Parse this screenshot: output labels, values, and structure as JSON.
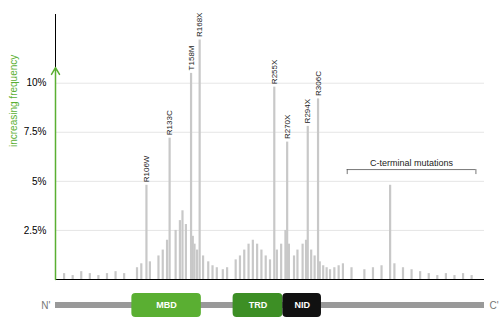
{
  "chart_data": {
    "type": "bar",
    "ylabel": "increasing frequency",
    "x": [
      10,
      20,
      30,
      40,
      50,
      60,
      70,
      80,
      95,
      100,
      110,
      120,
      125,
      130,
      140,
      145,
      148,
      152,
      160,
      162,
      165,
      172,
      178,
      183,
      188,
      195,
      200,
      210,
      215,
      220,
      225,
      230,
      235,
      240,
      245,
      250,
      258,
      263,
      268,
      272,
      278,
      282,
      288,
      292,
      298,
      302,
      308,
      312,
      316,
      320,
      325,
      330,
      335,
      345,
      360,
      370,
      380,
      395,
      405,
      415,
      425,
      435,
      445,
      455,
      465,
      475,
      485,
      106,
      133,
      158,
      168,
      255,
      270,
      294,
      306,
      390
    ],
    "values": [
      0.3,
      0.2,
      0.4,
      0.3,
      0.2,
      0.3,
      0.4,
      0.3,
      0.6,
      0.8,
      0.9,
      1.2,
      1.5,
      2.0,
      2.5,
      3.0,
      3.5,
      2.8,
      2.2,
      1.8,
      1.5,
      1.2,
      0.9,
      0.7,
      0.6,
      0.5,
      0.6,
      1.0,
      1.2,
      1.5,
      1.8,
      2.0,
      1.8,
      1.5,
      1.2,
      1.0,
      1.5,
      1.8,
      2.5,
      1.8,
      1.2,
      1.5,
      1.8,
      2.0,
      1.5,
      1.2,
      0.9,
      0.7,
      0.6,
      0.5,
      0.6,
      0.7,
      0.8,
      0.6,
      0.5,
      0.6,
      0.7,
      0.8,
      0.6,
      0.5,
      0.4,
      0.3,
      0.2,
      0.3,
      0.2,
      0.3,
      0.2,
      4.8,
      7.2,
      10.5,
      12.2,
      9.8,
      7.0,
      7.8,
      9.2,
      4.8
    ],
    "color": "#c8c8c8",
    "xlim": [
      0,
      500
    ],
    "ylim": [
      0,
      13.5
    ],
    "yticks": [
      {
        "value": 2.5,
        "label": "2.5%"
      },
      {
        "value": 5.0,
        "label": "5%"
      },
      {
        "value": 7.5,
        "label": "7.5%"
      },
      {
        "value": 10.0,
        "label": "10%"
      }
    ],
    "grid": true,
    "tick_labels": "y",
    "labels": [
      {
        "text": "R106W",
        "x": 106,
        "y": 4.8
      },
      {
        "text": "R133C",
        "x": 133,
        "y": 7.2
      },
      {
        "text": "T158M",
        "x": 158,
        "y": 10.5
      },
      {
        "text": "R168X",
        "x": 168,
        "y": 12.2
      },
      {
        "text": "R255X",
        "x": 255,
        "y": 9.8
      },
      {
        "text": "R270X",
        "x": 270,
        "y": 7.0
      },
      {
        "text": "R294X",
        "x": 294,
        "y": 7.8
      },
      {
        "text": "R306C",
        "x": 306,
        "y": 9.2
      }
    ],
    "bracket": {
      "text": "C-terminal mutations",
      "x1": 340,
      "x2": 490,
      "y": 5.6
    },
    "arrow": {
      "x": 0,
      "y1": 0.0,
      "y2": 10.8,
      "color": "#5aaf32"
    },
    "protein": {
      "xstart": 0,
      "xend": 500,
      "color": "#999999",
      "start_label": "N'",
      "end_label": "C'"
    },
    "domains": [
      {
        "label": "MBD",
        "xstart": 89,
        "xend": 170,
        "color": "#5aaf32"
      },
      {
        "label": "TRD",
        "xstart": 207,
        "xend": 265,
        "color": "#3d8f25"
      },
      {
        "label": "NID",
        "xstart": 265,
        "xend": 310,
        "color": "#111111"
      }
    ]
  }
}
